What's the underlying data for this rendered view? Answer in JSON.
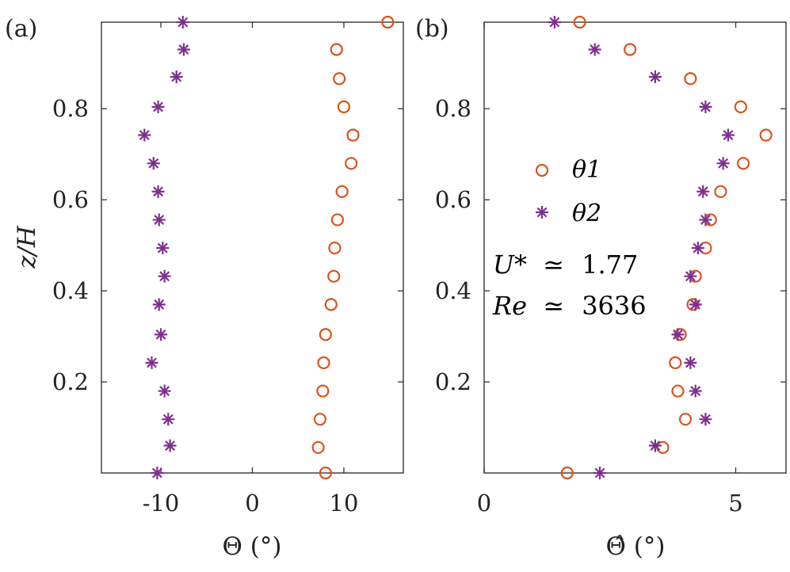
{
  "chart_data": [
    {
      "type": "scatter",
      "panel_label": "(a)",
      "xlabel": "Θ (°)",
      "ylabel": "z/H",
      "xlim": [
        -16.5,
        16.5
      ],
      "ylim": [
        0,
        0.99
      ],
      "xticks": [
        -10,
        0,
        10
      ],
      "xtick_labels": [
        "-10",
        "0",
        "10"
      ],
      "yticks": [
        0.2,
        0.4,
        0.6,
        0.8
      ],
      "ytick_labels": [
        "0.2",
        "0.4",
        "0.6",
        "0.8"
      ],
      "series": [
        {
          "name": "θ1",
          "marker": "circle",
          "color": "#d95319",
          "points": [
            [
              14.8,
              0.99
            ],
            [
              9.2,
              0.93
            ],
            [
              9.5,
              0.866
            ],
            [
              10.0,
              0.804
            ],
            [
              11.0,
              0.742
            ],
            [
              10.8,
              0.68
            ],
            [
              9.8,
              0.618
            ],
            [
              9.3,
              0.556
            ],
            [
              9.0,
              0.494
            ],
            [
              8.9,
              0.432
            ],
            [
              8.6,
              0.37
            ],
            [
              8.0,
              0.304
            ],
            [
              7.8,
              0.242
            ],
            [
              7.7,
              0.18
            ],
            [
              7.4,
              0.118
            ],
            [
              7.2,
              0.056
            ],
            [
              8.0,
              0.0
            ]
          ]
        },
        {
          "name": "θ2",
          "marker": "asterisk",
          "color": "#7e2f8e",
          "points": [
            [
              -7.6,
              0.99
            ],
            [
              -7.5,
              0.93
            ],
            [
              -8.3,
              0.87
            ],
            [
              -10.3,
              0.804
            ],
            [
              -11.8,
              0.742
            ],
            [
              -10.8,
              0.68
            ],
            [
              -10.3,
              0.618
            ],
            [
              -10.2,
              0.556
            ],
            [
              -9.8,
              0.494
            ],
            [
              -9.6,
              0.432
            ],
            [
              -10.2,
              0.37
            ],
            [
              -10.0,
              0.304
            ],
            [
              -11.0,
              0.242
            ],
            [
              -9.6,
              0.18
            ],
            [
              -9.2,
              0.118
            ],
            [
              -9.0,
              0.06
            ],
            [
              -10.4,
              0.0
            ]
          ]
        }
      ]
    },
    {
      "type": "scatter",
      "panel_label": "(b)",
      "xlabel": "Θ̂ (°)",
      "ylabel": "",
      "xlim": [
        0,
        6.0
      ],
      "ylim": [
        0,
        0.99
      ],
      "xticks": [
        0,
        5
      ],
      "xtick_labels": [
        "0",
        "5"
      ],
      "yticks": [
        0.2,
        0.4,
        0.6,
        0.8
      ],
      "ytick_labels": [
        "0.2",
        "0.4",
        "0.6",
        "0.8"
      ],
      "series": [
        {
          "name": "θ1",
          "marker": "circle",
          "color": "#d95319",
          "points": [
            [
              1.9,
              0.99
            ],
            [
              2.9,
              0.93
            ],
            [
              4.1,
              0.866
            ],
            [
              5.1,
              0.804
            ],
            [
              5.6,
              0.742
            ],
            [
              5.15,
              0.68
            ],
            [
              4.7,
              0.618
            ],
            [
              4.5,
              0.556
            ],
            [
              4.4,
              0.494
            ],
            [
              4.2,
              0.432
            ],
            [
              4.15,
              0.37
            ],
            [
              3.9,
              0.304
            ],
            [
              3.8,
              0.242
            ],
            [
              3.85,
              0.18
            ],
            [
              4.0,
              0.118
            ],
            [
              3.55,
              0.056
            ],
            [
              1.65,
              0.0
            ]
          ]
        },
        {
          "name": "θ2",
          "marker": "asterisk",
          "color": "#7e2f8e",
          "points": [
            [
              1.4,
              0.99
            ],
            [
              2.2,
              0.93
            ],
            [
              3.4,
              0.87
            ],
            [
              4.4,
              0.804
            ],
            [
              4.85,
              0.742
            ],
            [
              4.75,
              0.68
            ],
            [
              4.35,
              0.618
            ],
            [
              4.4,
              0.556
            ],
            [
              4.25,
              0.494
            ],
            [
              4.1,
              0.432
            ],
            [
              4.2,
              0.37
            ],
            [
              3.85,
              0.304
            ],
            [
              4.1,
              0.242
            ],
            [
              4.2,
              0.18
            ],
            [
              4.4,
              0.118
            ],
            [
              3.4,
              0.06
            ],
            [
              2.3,
              0.0
            ]
          ]
        }
      ],
      "legend": {
        "location": "center-left",
        "entries": [
          "θ1",
          "θ2"
        ]
      },
      "annotations": [
        {
          "var": "U*",
          "rel": "≃",
          "value": "1.77"
        },
        {
          "var": "Re",
          "rel": "≃",
          "value": "3636"
        }
      ]
    }
  ]
}
